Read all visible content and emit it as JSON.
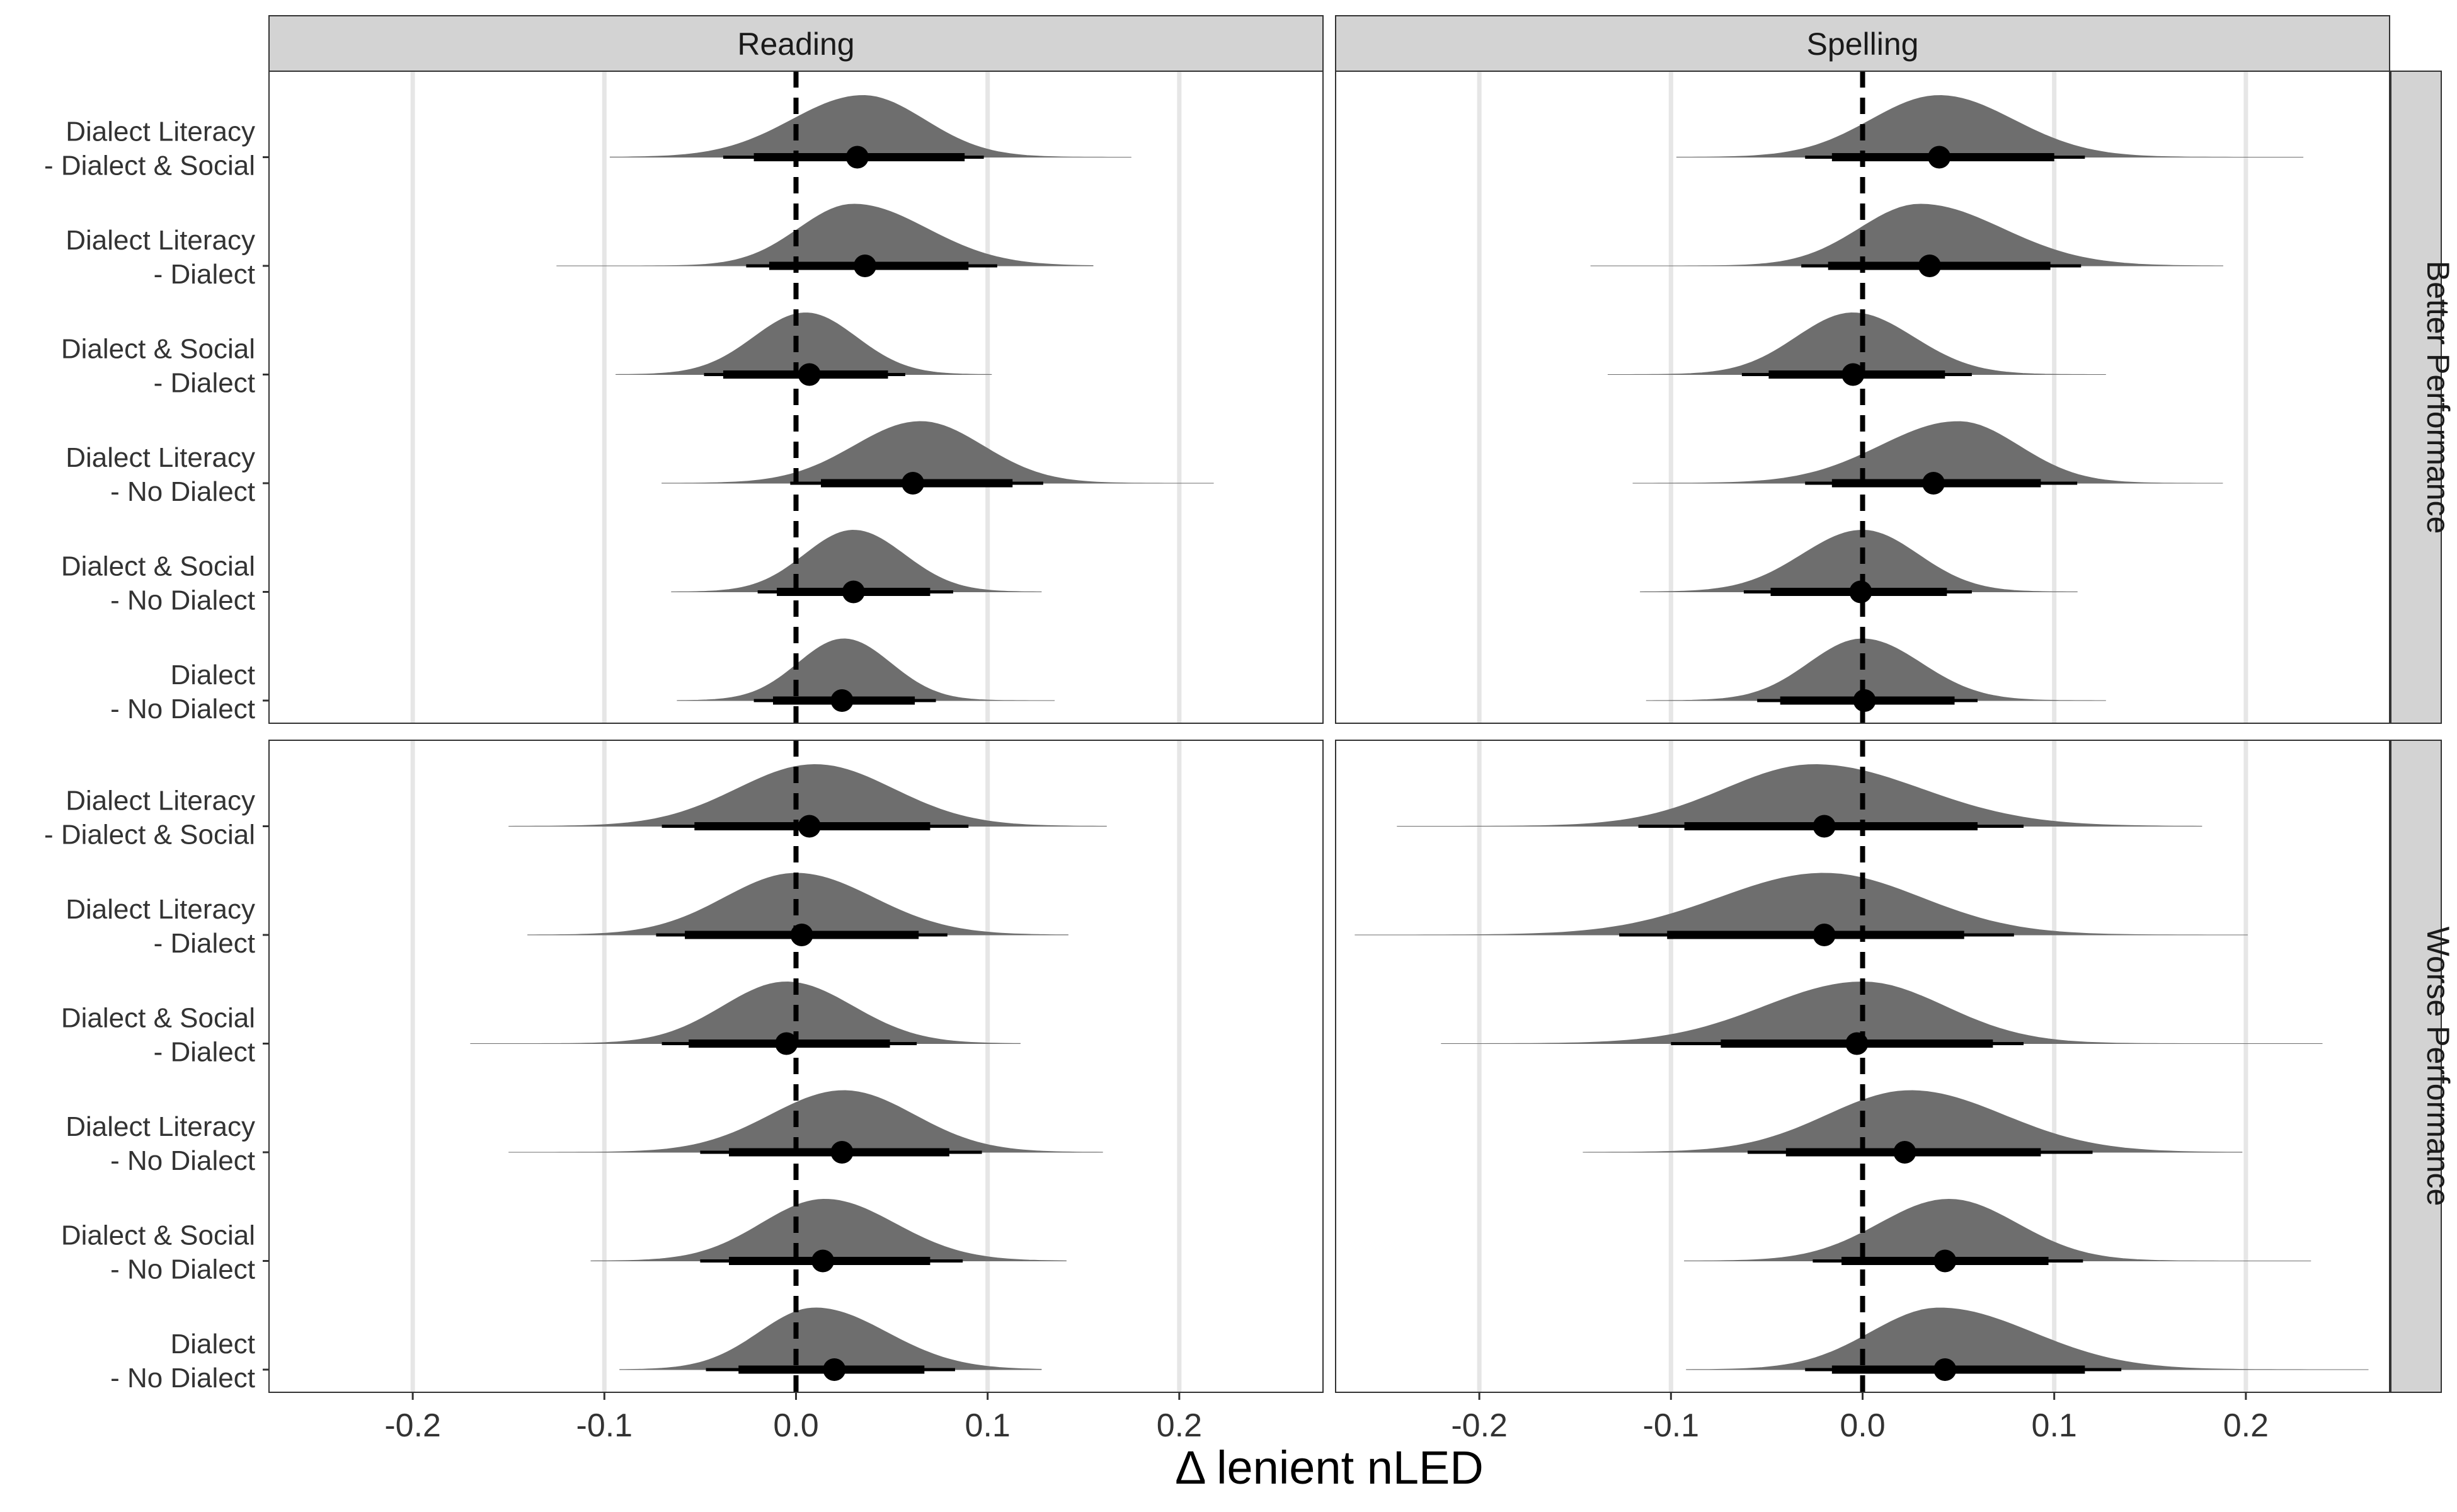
{
  "chart_data": {
    "type": "halfeye",
    "xlabel": "Δ lenient nLED",
    "ylabel": "",
    "xlim": [
      -0.275,
      0.275
    ],
    "x_ticks": [
      -0.2,
      -0.1,
      0.0,
      0.1,
      0.2
    ],
    "x_tick_labels": [
      "-0.2",
      "-0.1",
      "0.0",
      "0.1",
      "0.2"
    ],
    "reference_line": 0.0,
    "grid": "vertical major lines",
    "col_facets": [
      "Reading",
      "Spelling"
    ],
    "row_facets": [
      "Better Performance",
      "Worse Performance"
    ],
    "contrasts": [
      "Dialect Literacy\n- Dialect & Social",
      "Dialect Literacy\n- Dialect",
      "Dialect & Social\n- Dialect",
      "Dialect Literacy\n- No Dialect",
      "Dialect & Social\n- No Dialect",
      "Dialect\n- No Dialect"
    ],
    "panels": [
      {
        "col": "Reading",
        "row": "Better Performance",
        "estimates": [
          {
            "point": 0.032,
            "ci66": [
              -0.022,
              0.088
            ],
            "ci95": [
              -0.038,
              0.098
            ],
            "range": [
              -0.097,
              0.175
            ],
            "peak": 0.035
          },
          {
            "point": 0.036,
            "ci66": [
              -0.014,
              0.09
            ],
            "ci95": [
              -0.026,
              0.105
            ],
            "range": [
              -0.125,
              0.155
            ],
            "peak": 0.03
          },
          {
            "point": 0.007,
            "ci66": [
              -0.038,
              0.048
            ],
            "ci95": [
              -0.048,
              0.057
            ],
            "range": [
              -0.094,
              0.102
            ],
            "peak": 0.005
          },
          {
            "point": 0.061,
            "ci66": [
              0.013,
              0.113
            ],
            "ci95": [
              -0.003,
              0.129
            ],
            "range": [
              -0.07,
              0.218
            ],
            "peak": 0.065
          },
          {
            "point": 0.03,
            "ci66": [
              -0.01,
              0.07
            ],
            "ci95": [
              -0.02,
              0.082
            ],
            "range": [
              -0.065,
              0.128
            ],
            "peak": 0.03
          },
          {
            "point": 0.024,
            "ci66": [
              -0.012,
              0.062
            ],
            "ci95": [
              -0.022,
              0.073
            ],
            "range": [
              -0.062,
              0.135
            ],
            "peak": 0.025
          }
        ]
      },
      {
        "col": "Spelling",
        "row": "Better Performance",
        "estimates": [
          {
            "point": 0.04,
            "ci66": [
              -0.016,
              0.1
            ],
            "ci95": [
              -0.03,
              0.116
            ],
            "range": [
              -0.097,
              0.23
            ],
            "peak": 0.04
          },
          {
            "point": 0.035,
            "ci66": [
              -0.018,
              0.098
            ],
            "ci95": [
              -0.032,
              0.114
            ],
            "range": [
              -0.142,
              0.188
            ],
            "peak": 0.03
          },
          {
            "point": -0.005,
            "ci66": [
              -0.049,
              0.043
            ],
            "ci95": [
              -0.063,
              0.057
            ],
            "range": [
              -0.133,
              0.127
            ],
            "peak": -0.005
          },
          {
            "point": 0.037,
            "ci66": [
              -0.016,
              0.093
            ],
            "ci95": [
              -0.03,
              0.112
            ],
            "range": [
              -0.12,
              0.188
            ],
            "peak": 0.05
          },
          {
            "point": -0.001,
            "ci66": [
              -0.048,
              0.044
            ],
            "ci95": [
              -0.062,
              0.057
            ],
            "range": [
              -0.116,
              0.112
            ],
            "peak": 0.0
          },
          {
            "point": 0.001,
            "ci66": [
              -0.043,
              0.048
            ],
            "ci95": [
              -0.055,
              0.06
            ],
            "range": [
              -0.113,
              0.127
            ],
            "peak": 0.0
          }
        ]
      },
      {
        "col": "Reading",
        "row": "Worse Performance",
        "estimates": [
          {
            "point": 0.007,
            "ci66": [
              -0.053,
              0.07
            ],
            "ci95": [
              -0.07,
              0.09
            ],
            "range": [
              -0.15,
              0.162
            ],
            "peak": 0.01
          },
          {
            "point": 0.003,
            "ci66": [
              -0.058,
              0.064
            ],
            "ci95": [
              -0.073,
              0.079
            ],
            "range": [
              -0.14,
              0.142
            ],
            "peak": 0.0
          },
          {
            "point": -0.005,
            "ci66": [
              -0.056,
              0.049
            ],
            "ci95": [
              -0.07,
              0.063
            ],
            "range": [
              -0.17,
              0.117
            ],
            "peak": -0.005
          },
          {
            "point": 0.024,
            "ci66": [
              -0.035,
              0.08
            ],
            "ci95": [
              -0.05,
              0.097
            ],
            "range": [
              -0.15,
              0.16
            ],
            "peak": 0.025
          },
          {
            "point": 0.014,
            "ci66": [
              -0.035,
              0.07
            ],
            "ci95": [
              -0.05,
              0.087
            ],
            "range": [
              -0.107,
              0.141
            ],
            "peak": 0.015
          },
          {
            "point": 0.02,
            "ci66": [
              -0.03,
              0.067
            ],
            "ci95": [
              -0.047,
              0.083
            ],
            "range": [
              -0.092,
              0.128
            ],
            "peak": 0.01
          }
        ]
      },
      {
        "col": "Spelling",
        "row": "Worse Performance",
        "estimates": [
          {
            "point": -0.02,
            "ci66": [
              -0.093,
              0.06
            ],
            "ci95": [
              -0.117,
              0.084
            ],
            "range": [
              -0.243,
              0.177
            ],
            "peak": -0.025
          },
          {
            "point": -0.02,
            "ci66": [
              -0.102,
              0.053
            ],
            "ci95": [
              -0.127,
              0.079
            ],
            "range": [
              -0.265,
              0.201
            ],
            "peak": -0.02
          },
          {
            "point": -0.003,
            "ci66": [
              -0.074,
              0.068
            ],
            "ci95": [
              -0.1,
              0.084
            ],
            "range": [
              -0.22,
              0.24
            ],
            "peak": 0.0
          },
          {
            "point": 0.022,
            "ci66": [
              -0.04,
              0.093
            ],
            "ci95": [
              -0.06,
              0.12
            ],
            "range": [
              -0.146,
              0.198
            ],
            "peak": 0.025
          },
          {
            "point": 0.043,
            "ci66": [
              -0.011,
              0.097
            ],
            "ci95": [
              -0.026,
              0.115
            ],
            "range": [
              -0.093,
              0.234
            ],
            "peak": 0.045
          },
          {
            "point": 0.043,
            "ci66": [
              -0.016,
              0.116
            ],
            "ci95": [
              -0.03,
              0.135
            ],
            "range": [
              -0.092,
              0.264
            ],
            "peak": 0.04
          }
        ]
      }
    ],
    "colors": {
      "density": "#6e6e6e",
      "interval": "#000000",
      "strip": "#d3d3d3",
      "grid": "#e6e6e6",
      "panel_border": "#333333",
      "zero_line": "#000000"
    }
  }
}
